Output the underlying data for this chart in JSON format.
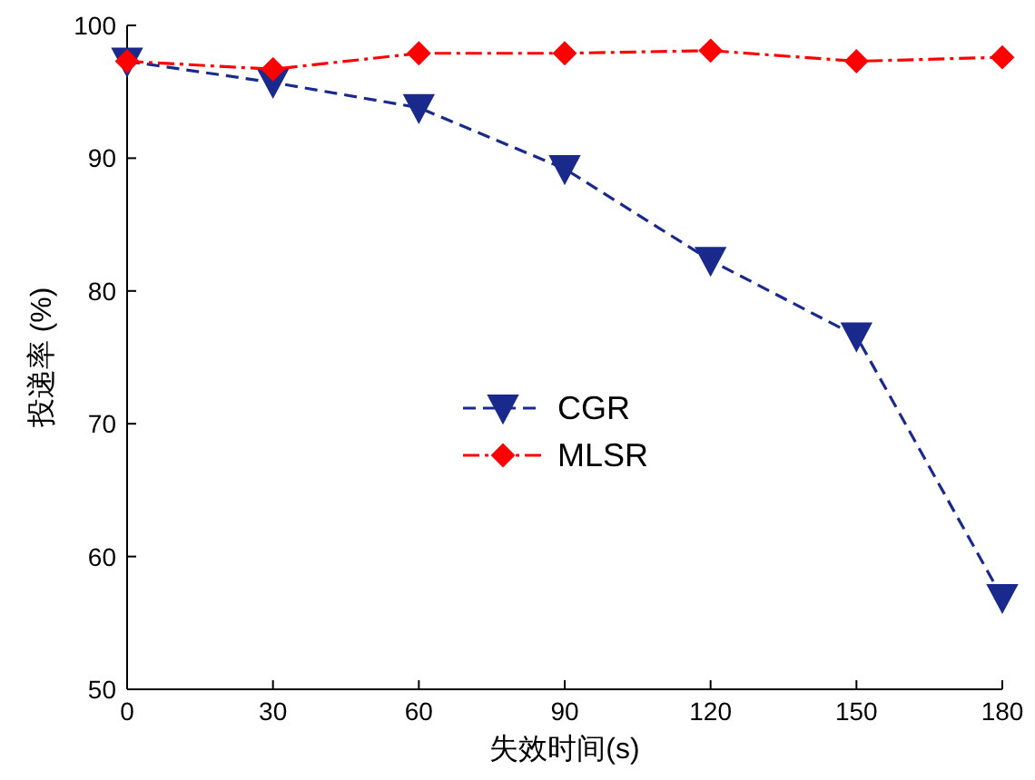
{
  "chart_data": {
    "type": "line",
    "xlabel": "失效时间(s)",
    "ylabel": "投递率 (%)",
    "x": [
      0,
      30,
      60,
      90,
      120,
      150,
      180
    ],
    "xlim": [
      0,
      180
    ],
    "xticks": [
      0,
      30,
      60,
      90,
      120,
      150,
      180
    ],
    "ylim": [
      50,
      100
    ],
    "yticks": [
      50,
      60,
      70,
      80,
      90,
      100
    ],
    "grid": false,
    "legend": "center",
    "series": [
      {
        "name": "CGR",
        "color": "#1a2a8c",
        "marker": "triangle",
        "line_style": "dashed",
        "values": [
          97.3,
          95.7,
          93.8,
          89.2,
          82.3,
          76.6,
          56.9
        ]
      },
      {
        "name": "MLSR",
        "color": "#ff0000",
        "marker": "diamond",
        "line_style": "dashdot",
        "values": [
          97.3,
          96.7,
          97.9,
          97.9,
          98.1,
          97.3,
          97.6
        ]
      }
    ]
  }
}
